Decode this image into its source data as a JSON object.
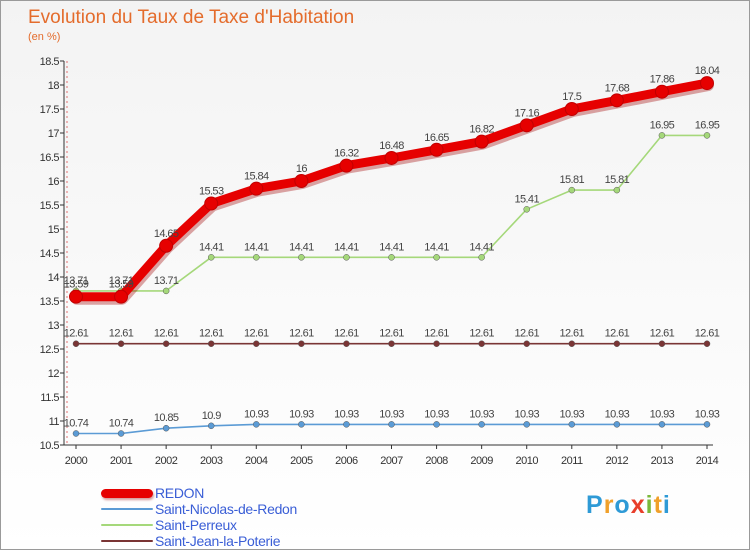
{
  "title": "Evolution du Taux de Taxe d'Habitation",
  "unit": "(en %)",
  "logo": {
    "letters": [
      "P",
      "r",
      "o",
      "x",
      "i",
      "t",
      "i"
    ],
    "colors": [
      "#2e9ad6",
      "#f0a02a",
      "#2e9ad6",
      "#e83e2a",
      "#7ab83a",
      "#f0a02a",
      "#2e9ad6"
    ]
  },
  "chart_data": {
    "type": "line",
    "x": [
      2000,
      2001,
      2002,
      2003,
      2004,
      2005,
      2006,
      2007,
      2008,
      2009,
      2010,
      2011,
      2012,
      2013,
      2014
    ],
    "ylim": [
      10.5,
      18.5
    ],
    "y_ticks": [
      "10.5",
      "11",
      "11.5",
      "12",
      "12.5",
      "13",
      "13.5",
      "14",
      "14.5",
      "15",
      "15.5",
      "16",
      "16.5",
      "17",
      "17.5",
      "18",
      "18.5"
    ],
    "grid": false,
    "legend_position": "bottom-left",
    "series": [
      {
        "name": "REDON",
        "color": "#e60000",
        "values": [
          13.59,
          13.59,
          14.65,
          15.53,
          15.84,
          16,
          16.32,
          16.48,
          16.65,
          16.82,
          17.16,
          17.5,
          17.68,
          17.86,
          18.04
        ],
        "labels": [
          "13.59",
          "13.59",
          "14.65",
          "15.53",
          "15.84",
          "16",
          "16.32",
          "16.48",
          "16.65",
          "16.82",
          "17.16",
          "17.5",
          "17.68",
          "17.86",
          "18.04"
        ]
      },
      {
        "name": "Saint-Nicolas-de-Redon",
        "color": "#5b9bd5",
        "values": [
          10.74,
          10.74,
          10.85,
          10.9,
          10.93,
          10.93,
          10.93,
          10.93,
          10.93,
          10.93,
          10.93,
          10.93,
          10.93,
          10.93,
          10.93
        ],
        "labels": [
          "10.74",
          "10.74",
          "10.85",
          "10.9",
          "10.93",
          "10.93",
          "10.93",
          "10.93",
          "10.93",
          "10.93",
          "10.93",
          "10.93",
          "10.93",
          "10.93",
          "10.93"
        ]
      },
      {
        "name": "Saint-Perreux",
        "color": "#a5d87a",
        "values": [
          13.71,
          13.71,
          13.71,
          14.41,
          14.41,
          14.41,
          14.41,
          14.41,
          14.41,
          14.41,
          15.41,
          15.81,
          15.81,
          16.95,
          16.95
        ],
        "labels": [
          "13.71",
          "13.71",
          "13.71",
          "14.41",
          "14.41",
          "14.41",
          "14.41",
          "14.41",
          "14.41",
          "14.41",
          "15.41",
          "15.81",
          "15.81",
          "16.95",
          "16.95"
        ]
      },
      {
        "name": "Saint-Jean-la-Poterie",
        "color": "#7a3535",
        "values": [
          12.61,
          12.61,
          12.61,
          12.61,
          12.61,
          12.61,
          12.61,
          12.61,
          12.61,
          12.61,
          12.61,
          12.61,
          12.61,
          12.61,
          12.61
        ],
        "labels": [
          "12.61",
          "12.61",
          "12.61",
          "12.61",
          "12.61",
          "12.61",
          "12.61",
          "12.61",
          "12.61",
          "12.61",
          "12.61",
          "12.61",
          "12.61",
          "12.61",
          "12.61"
        ]
      }
    ]
  }
}
